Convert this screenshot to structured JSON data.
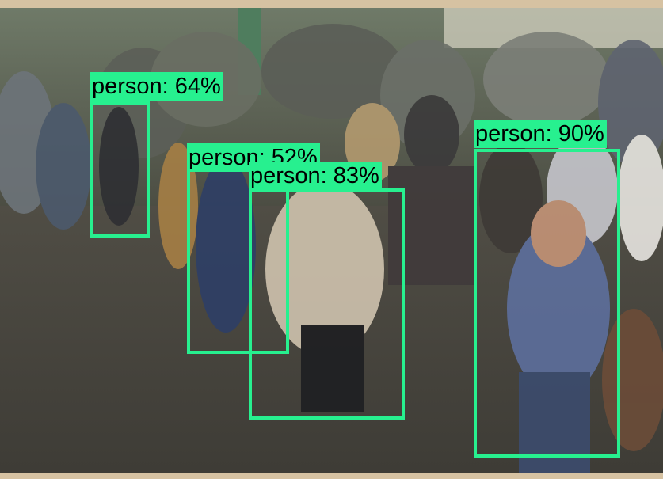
{
  "image": {
    "accent_color": "#27f08f",
    "scene": "crowd"
  },
  "detections": [
    {
      "label": "person: 64%",
      "class": "person",
      "score": 64
    },
    {
      "label": "person: 52%",
      "class": "person",
      "score": 52
    },
    {
      "label": "person: 83%",
      "class": "person",
      "score": 83
    },
    {
      "label": "person: 90%",
      "class": "person",
      "score": 90
    }
  ]
}
